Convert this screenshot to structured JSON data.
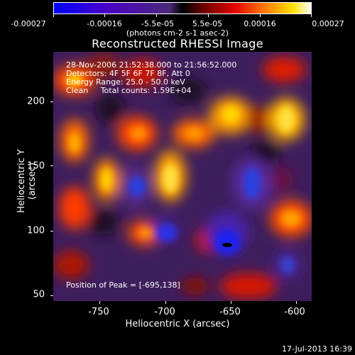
{
  "colorbar": {
    "labels": [
      "-0.00027",
      "-0.00016",
      "-5.5e-05",
      "5.5e-05",
      "0.00016",
      "0.00027"
    ],
    "units": "(photons cm-2 s-1 asec-2)"
  },
  "title": "Reconstructed RHESSI Image",
  "info": {
    "time": "28-Nov-2006 21:52:38.000 to 21:56:52.000",
    "detectors": "Detectors: 4F 5F 6F 7F 8F, Att 0",
    "energy": "Energy Range: 25.0 - 50.0 keV",
    "clean": "Clean     Total counts: 1.59E+04",
    "peak": "Position of Peak = [-695,138]"
  },
  "axes": {
    "xlabel": "Heliocentric X (arcsec)",
    "ylabel": "Heliocentric Y (arcsec)",
    "xticks": [
      "-750",
      "-700",
      "-650",
      "-600"
    ],
    "yticks": [
      "200",
      "150",
      "100",
      "50"
    ]
  },
  "timestamp": "17-Jul-2013 16:39"
}
